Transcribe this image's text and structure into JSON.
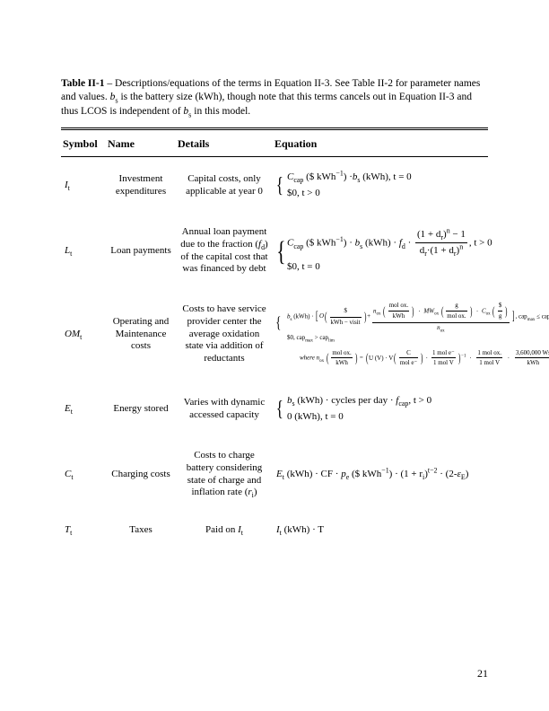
{
  "caption": {
    "label": "Table II-1",
    "sep": " – ",
    "text_a": "Descriptions/equations of the terms in Equation II-3. See Table II-2 for parameter names and values. ",
    "var": "b",
    "var_sub": "s",
    "text_b": " is the battery size (kWh), though note that this terms cancels out in Equation II-3 and thus LCOS is independent of ",
    "text_c": " in this model."
  },
  "headers": {
    "symbol": "Symbol",
    "name": "Name",
    "details": "Details",
    "equation": "Equation"
  },
  "rows": {
    "I": {
      "sym": "I",
      "sub": "t",
      "name": "Investment expenditures",
      "details": "Capital costs, only applicable at year 0",
      "eq": {
        "line1_a": "C",
        "line1_a_sub": "cap",
        "line1_b": " ($ kWh",
        "line1_b_sup": "−1",
        "line1_c": ")  ·",
        "line1_d": "b",
        "line1_d_sub": "s",
        "line1_e": " (kWh), t = 0",
        "line2": "$0, t > 0"
      }
    },
    "L": {
      "sym": "L",
      "sub": "t",
      "name": "Loan payments",
      "details_a": "Annual loan payment due to the fraction (",
      "details_var": "f",
      "details_var_sub": "d",
      "details_b": ") of the capital cost that was financed by debt",
      "eq": {
        "pre_a": "C",
        "pre_a_sub": "cap",
        "pre_b": " ($ kWh",
        "pre_b_sup": "−1",
        "pre_c": ") · ",
        "pre_d": "b",
        "pre_d_sub": "s",
        "pre_e": " (kWh) · ",
        "pre_f": "f",
        "pre_f_sub": "d",
        "pre_g": " · ",
        "num_a": "(1 + d",
        "num_b": "r",
        "num_c": ")",
        "num_d": "n",
        "num_e": " − 1",
        "den_a": "d",
        "den_b": "r",
        "den_c": "·(1 + d",
        "den_d": "r",
        "den_e": ")",
        "den_f": "n",
        "tail": ", t > 0",
        "line2": "$0, t = 0"
      }
    },
    "OM": {
      "sym": "OM",
      "sub": "t",
      "name": "Operating and Maintenance costs",
      "details": "Costs to have service provider center the average oxidation state via addition of reductants",
      "eq": {
        "obs_a": "b",
        "obs_a_sub": "s",
        "obs_b": " (kWh) · ",
        "obs_o": "O",
        "obs_o_unit_num": "$",
        "obs_o_unit_den": "kWh − visit",
        "obs_plus": " + ",
        "obs_n": "n",
        "obs_n_sub": "ox",
        "obs_n_unit_num": "mol ox.",
        "obs_n_unit_den": "kWh",
        "obs_mw": "MW",
        "obs_mw_sub": "ox",
        "obs_mw_unit_num": "g",
        "obs_mw_unit_den": "mol ox.",
        "obs_c": "C",
        "obs_c_sub": "ox",
        "obs_c_unit_num": "$",
        "obs_c_unit_den": "g",
        "obs_tail_a": ", cap",
        "obs_tail_a_sub": "max",
        "obs_tail_b": " ≤ cap",
        "obs_tail_b_sub": "lim",
        "line2_a": "$0, cap",
        "line2_a_sub": "max",
        "line2_b": " > cap",
        "line2_b_sub": "lim",
        "where_lbl": "where ",
        "where_n": "n",
        "where_n_sub": "ox",
        "where_n_unit_num": "mol ox.",
        "where_n_unit_den": "kWh",
        "where_eq": " = ",
        "where_uv_a": "U (V) · V",
        "where_uv_unit_num": "C",
        "where_uv_unit_den": "mol e⁻",
        "where_ratio_num": "1 mol e⁻",
        "where_ratio_den": "1 mol V",
        "where_exp": "−1",
        "where_r2_num": "1 mol ox.",
        "where_r2_den": "1 mol V",
        "where_r3_num": "3,600,000 Ws",
        "where_r3_den": "kWh"
      }
    },
    "E": {
      "sym": "E",
      "sub": "t",
      "name": "Energy stored",
      "details": "Varies with dynamic accessed capacity",
      "eq": {
        "l1_a": " b",
        "l1_a_sub": "s",
        "l1_b": " (kWh) · cycles per day · ",
        "l1_c": "f",
        "l1_c_sub": "cap",
        "l1_d": ", t > 0",
        "l2": "0 (kWh), t = 0"
      }
    },
    "C": {
      "sym": "C",
      "sub": "t",
      "name": "Charging costs",
      "details_a": "Costs to charge battery considering state of charge and inflation rate (",
      "details_var": "r",
      "details_var_sub": "i",
      "details_b": ")",
      "eq": {
        "a": "E",
        "a_sub": "t",
        "b": " (kWh) · CF · ",
        "c": "p",
        "c_sub": "e",
        "d": " ($ kWh",
        "d_sup": "−1",
        "e": ") · (1 + r",
        "e_sub": "i",
        "f": ")",
        "f_sup": "t−2",
        "g": " · (2-",
        "h": "ε",
        "h_sub": "E",
        "i": ")"
      }
    },
    "T": {
      "sym": "T",
      "sub": "t",
      "name": "Taxes",
      "details_a": "Paid on ",
      "details_var": "I",
      "details_var_sub": "t",
      "eq": {
        "a": "I",
        "a_sub": "t",
        "b": " (kWh) · T"
      }
    }
  },
  "page_number": "21"
}
